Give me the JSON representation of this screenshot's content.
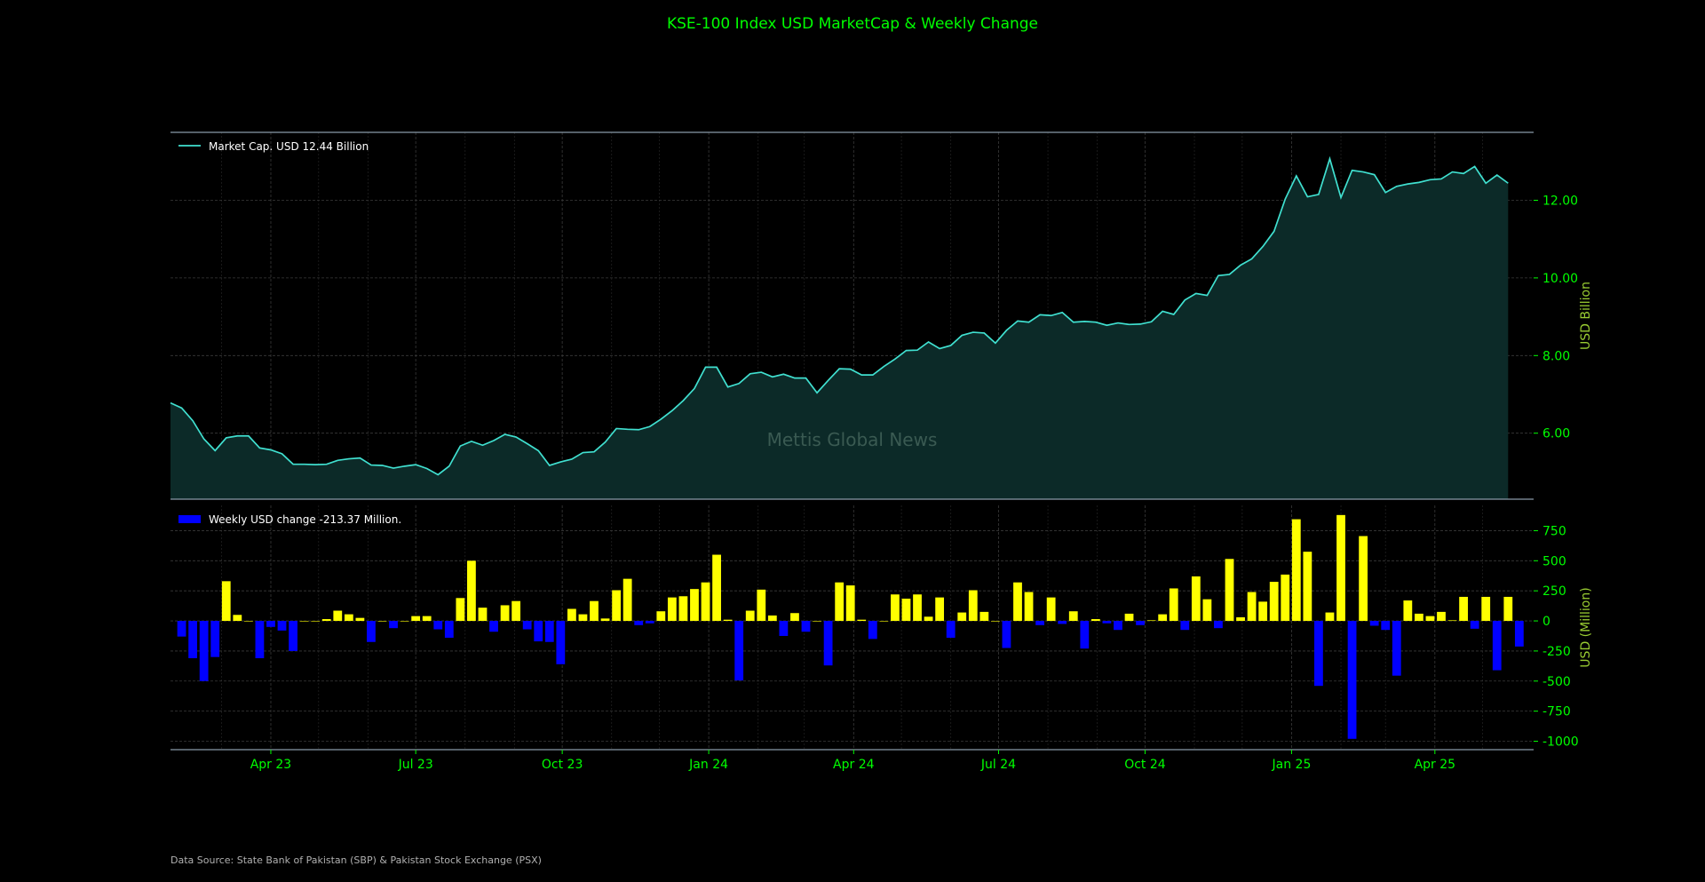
{
  "colors": {
    "background": "#000000",
    "title": "#00ff00",
    "tick_label": "#00ff00",
    "axis_label": "#9acd32",
    "line": "#40e0d0",
    "area_fill": "#0c2a28",
    "bar_positive": "#ffff00",
    "bar_negative": "#0000ff",
    "grid": "#3a3a3a",
    "spine": "#8a9aa8",
    "legend_text": "#ffffff",
    "watermark": "#3a5a52",
    "source_text": "#b0b0b0"
  },
  "title": "KSE-100 Index USD MarketCap & Weekly Change",
  "watermark": "Mettis Global News",
  "source": "Data Source: State Bank of Pakistan (SBP) & Pakistan Stock Exchange (PSX)",
  "chart_data": [
    {
      "type": "area",
      "legend": "Market Cap. USD 12.44 Billion",
      "legend_position": "top-left",
      "ylabel": "USD Billion",
      "ylim": [
        4.3,
        13.75
      ],
      "yticks": [
        6,
        8,
        10,
        12
      ],
      "ytick_labels": [
        "6.00",
        "8.00",
        "10.00",
        "12.00"
      ],
      "grid": true,
      "x_start": "2023-01-28",
      "x_step_days": 7,
      "values": [
        6.78,
        6.65,
        6.32,
        5.85,
        5.55,
        5.88,
        5.93,
        5.93,
        5.62,
        5.57,
        5.47,
        5.2,
        5.2,
        5.19,
        5.2,
        5.3,
        5.34,
        5.36,
        5.18,
        5.17,
        5.1,
        5.15,
        5.19,
        5.09,
        4.93,
        5.15,
        5.67,
        5.79,
        5.69,
        5.81,
        5.97,
        5.9,
        5.73,
        5.55,
        5.17,
        5.26,
        5.33,
        5.5,
        5.52,
        5.77,
        6.12,
        6.1,
        6.09,
        6.17,
        6.36,
        6.58,
        6.84,
        7.15,
        7.7,
        7.7,
        7.19,
        7.28,
        7.53,
        7.57,
        7.45,
        7.52,
        7.42,
        7.42,
        7.04,
        7.36,
        7.66,
        7.65,
        7.5,
        7.5,
        7.72,
        7.91,
        8.13,
        8.14,
        8.35,
        8.18,
        8.26,
        8.52,
        8.6,
        8.58,
        8.32,
        8.65,
        8.89,
        8.86,
        9.05,
        9.03,
        9.11,
        8.86,
        8.88,
        8.86,
        8.78,
        8.84,
        8.8,
        8.81,
        8.87,
        9.14,
        9.06,
        9.43,
        9.6,
        9.55,
        10.06,
        10.09,
        10.33,
        10.49,
        10.81,
        11.2,
        12.03,
        12.63,
        12.09,
        12.15,
        13.07,
        12.07,
        12.77,
        12.73,
        12.66,
        12.2,
        12.36,
        12.42,
        12.46,
        12.53,
        12.55,
        12.73,
        12.69,
        12.87,
        12.44,
        12.65,
        12.44
      ]
    },
    {
      "type": "bar",
      "legend": "Weekly USD change -213.37 Million.",
      "legend_position": "top-left",
      "ylabel": "USD (Million)",
      "ylim": [
        -1070,
        960
      ],
      "yticks": [
        -1000,
        -750,
        -500,
        -250,
        0,
        250,
        500,
        750
      ],
      "ytick_labels": [
        "-1000",
        "-750",
        "-500",
        "-250",
        "0",
        "250",
        "500",
        "750"
      ],
      "grid": true,
      "x_start": "2023-02-04",
      "x_step_days": 7,
      "values": [
        -130,
        -310,
        -500,
        -300,
        330,
        50,
        0,
        -310,
        -50,
        -80,
        -250,
        0,
        0,
        15,
        85,
        55,
        25,
        -175,
        0,
        -60,
        0,
        40,
        40,
        -70,
        -140,
        190,
        500,
        110,
        -90,
        130,
        165,
        -70,
        -170,
        -175,
        -360,
        100,
        55,
        165,
        20,
        255,
        350,
        -35,
        -20,
        80,
        195,
        205,
        265,
        320,
        550,
        10,
        -495,
        85,
        260,
        45,
        -125,
        65,
        -90,
        0,
        -370,
        320,
        295,
        10,
        -150,
        0,
        220,
        185,
        220,
        35,
        195,
        -140,
        70,
        255,
        75,
        0,
        -225,
        320,
        240,
        -35,
        195,
        -25,
        80,
        -230,
        15,
        -20,
        -75,
        60,
        -35,
        5,
        55,
        270,
        -75,
        370,
        180,
        -60,
        515,
        30,
        240,
        160,
        325,
        385,
        845,
        575,
        -540,
        70,
        880,
        -980,
        705,
        -40,
        -75,
        -455,
        170,
        60,
        40,
        75,
        5,
        200,
        -65,
        200,
        -410,
        200,
        -213
      ]
    }
  ],
  "x_axis": {
    "tick_labels": [
      "Apr 23",
      "Jul 23",
      "Oct 23",
      "Jan 24",
      "Apr 24",
      "Jul 24",
      "Oct 24",
      "Jan 25",
      "Apr 25"
    ],
    "tick_dates": [
      "2023-04-01",
      "2023-07-01",
      "2023-10-01",
      "2024-01-01",
      "2024-04-01",
      "2024-07-01",
      "2024-10-01",
      "2025-01-01",
      "2025-04-01"
    ],
    "major_dates": [
      "2023-04-01",
      "2023-07-01",
      "2023-10-01",
      "2024-01-01",
      "2024-04-01",
      "2024-07-01",
      "2024-10-01",
      "2025-01-01",
      "2025-04-01"
    ],
    "minor_dates": [
      "2023-03-01",
      "2023-05-01",
      "2023-06-01",
      "2023-08-01",
      "2023-09-01",
      "2023-11-01",
      "2023-12-01",
      "2024-02-01",
      "2024-03-01",
      "2024-05-01",
      "2024-06-01",
      "2024-08-01",
      "2024-09-01",
      "2024-11-01",
      "2024-12-01",
      "2025-02-01",
      "2025-03-01",
      "2025-05-01"
    ],
    "range": [
      "2023-01-28",
      "2025-06-02"
    ]
  }
}
